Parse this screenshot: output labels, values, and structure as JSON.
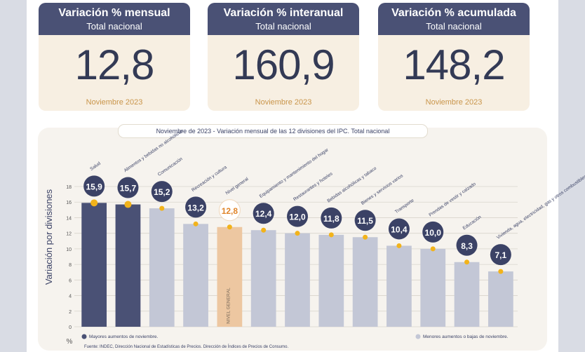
{
  "cards": [
    {
      "title": "Variación % mensual",
      "subtitle": "Total nacional",
      "value": "12,8",
      "date": "Noviembre 2023"
    },
    {
      "title": "Variación % interanual",
      "subtitle": "Total nacional",
      "value": "160,9",
      "date": "Noviembre 2023"
    },
    {
      "title": "Variación % acumulada",
      "subtitle": "Total nacional",
      "value": "148,2",
      "date": "Noviembre 2023"
    }
  ],
  "colors": {
    "dark": "#4a5175",
    "light": "#c3c7d6",
    "accent": "#edc7a1",
    "dot": "#f2b31b",
    "badge": "#3b4266"
  },
  "chart_data": {
    "type": "bar",
    "title": "Noviembre de 2023 - Variación mensual de las 12 divisiones del IPC. Total nacional",
    "ylabel": "Variación por divisiones",
    "yunit": "%",
    "ylim": [
      0,
      18
    ],
    "yticks": [
      0,
      2,
      4,
      6,
      8,
      10,
      12,
      14,
      16,
      18
    ],
    "categories": [
      "Salud",
      "Alimentos y bebidas no alcohólicas",
      "Comunicación",
      "Recreación y cultura",
      "Nivel general",
      "Equipamiento y mantenimiento del hogar",
      "Restaurantes y hoteles",
      "Bebidas alcohólicas y tabaco",
      "Bienes y servicios varios",
      "Transporte",
      "Prendas de vestir y calzado",
      "Educación",
      "Vivienda, agua, electricidad, gas y otros combustibles"
    ],
    "values": [
      15.9,
      15.7,
      15.2,
      13.2,
      12.8,
      12.4,
      12.0,
      11.8,
      11.5,
      10.4,
      10.0,
      8.3,
      7.1
    ],
    "value_labels": [
      "15,9",
      "15,7",
      "15,2",
      "13,2",
      "12,8",
      "12,4",
      "12,0",
      "11,8",
      "11,5",
      "10,4",
      "10,0",
      "8,3",
      "7,1"
    ],
    "groups": [
      "mayor",
      "mayor",
      "menor",
      "menor",
      "general",
      "menor",
      "menor",
      "menor",
      "menor",
      "menor",
      "menor",
      "menor",
      "menor"
    ],
    "general_label": "NIVEL GENERAL",
    "legend": {
      "mayor": "Mayores aumentos de noviembre.",
      "menor": "Menores aumentos o bajas de noviembre."
    },
    "grid": true
  },
  "source": "Fuente: INDEC, Dirección Nacional de Estadísticas de Precios. Dirección de Índices de Precios de Consumo."
}
